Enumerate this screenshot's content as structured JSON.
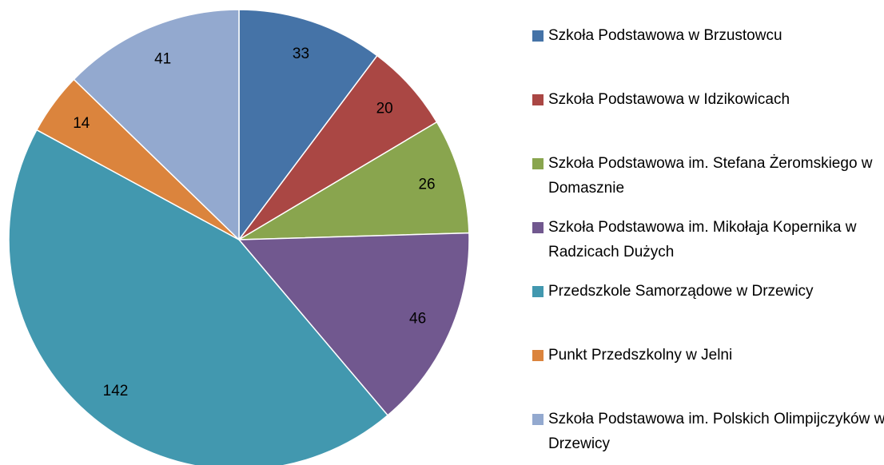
{
  "chart_data": {
    "type": "pie",
    "categories": [
      "Szkoła Podstawowa w Brzustowcu",
      "Szkoła Podstawowa w Idzikowicach",
      "Szkoła Podstawowa im. Stefana Żeromskiego w Domasznie",
      "Szkoła Podstawowa im. Mikołaja Kopernika w Radzicach Dużych",
      "Przedszkole Samorządowe w Drzewicy",
      "Punkt Przedszkolny w Jelni",
      "Szkoła Podstawowa im. Polskich Olimpijczyków w Drzewicy"
    ],
    "values": [
      33,
      20,
      26,
      46,
      142,
      14,
      41
    ],
    "colors": [
      "#4573a7",
      "#aa4744",
      "#89a54e",
      "#71588f",
      "#4298af",
      "#db843d",
      "#93a9cf"
    ],
    "legend": "right"
  }
}
